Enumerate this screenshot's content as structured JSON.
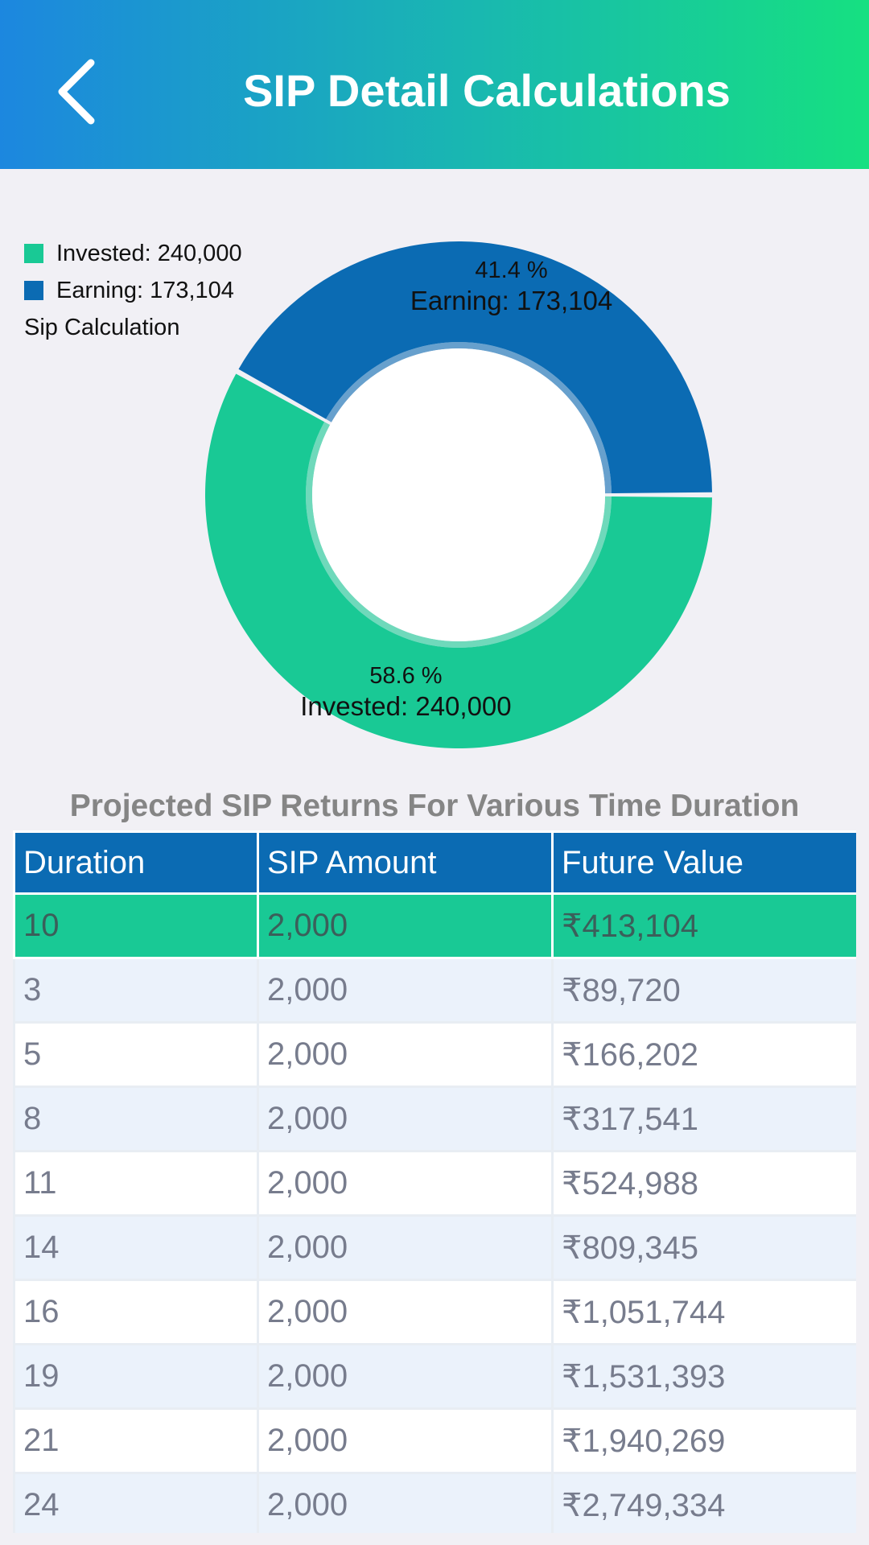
{
  "header": {
    "title": "SIP Detail Calculations",
    "back_icon": "chevron-left-icon"
  },
  "colors": {
    "invested": "#19c995",
    "earning": "#0b6bb3",
    "header_start": "#1c87df",
    "header_end": "#16e081"
  },
  "chart_data": {
    "type": "pie",
    "variant": "donut",
    "description": "Sip Calculation",
    "legend_position": "top-left",
    "slices": [
      {
        "label": "Invested: 240,000",
        "name": "Invested",
        "value": 240000,
        "percent_label": "58.6 %",
        "color": "#19c995"
      },
      {
        "label": "Earning: 173,104",
        "name": "Earning",
        "value": 173104,
        "percent_label": "41.4 %",
        "color": "#0b6bb3"
      }
    ]
  },
  "table": {
    "title": "Projected SIP Returns For Various Time Duration",
    "columns": [
      "Duration",
      "SIP Amount",
      "Future Value"
    ],
    "rows": [
      [
        "10",
        "2,000",
        "₹413,104"
      ],
      [
        "3",
        "2,000",
        "₹89,720"
      ],
      [
        "5",
        "2,000",
        "₹166,202"
      ],
      [
        "8",
        "2,000",
        "₹317,541"
      ],
      [
        "11",
        "2,000",
        "₹524,988"
      ],
      [
        "14",
        "2,000",
        "₹809,345"
      ],
      [
        "16",
        "2,000",
        "₹1,051,744"
      ],
      [
        "19",
        "2,000",
        "₹1,531,393"
      ],
      [
        "21",
        "2,000",
        "₹1,940,269"
      ],
      [
        "24",
        "2,000",
        "₹2,749,334"
      ]
    ]
  }
}
